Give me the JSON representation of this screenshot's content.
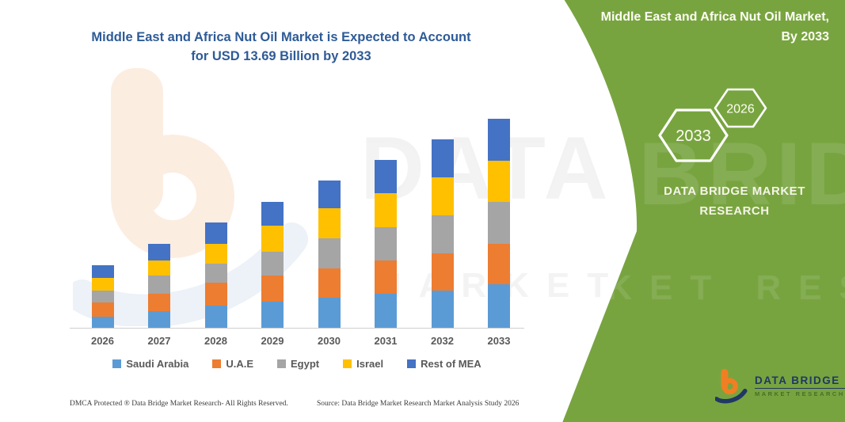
{
  "chart": {
    "title_line1": "Middle East and Africa Nut Oil Market is Expected to Account",
    "title_line2": "for USD 13.69 Billion by 2033",
    "title_color": "#2E5B97"
  },
  "chart_data": {
    "type": "bar",
    "stacked": true,
    "title": "Middle East and Africa Nut Oil Market is Expected to Account for USD 13.69 Billion by 2033",
    "value_unit": "USD Billion",
    "xlabel": "",
    "ylabel": "",
    "ylim": [
      0,
      14
    ],
    "grid": false,
    "legend_position": "bottom",
    "categories": [
      "2026",
      "2027",
      "2028",
      "2029",
      "2030",
      "2031",
      "2032",
      "2033"
    ],
    "series": [
      {
        "name": "Saudi Arabia",
        "color": "#5B9BD5",
        "values": [
          0.74,
          1.09,
          1.43,
          1.69,
          1.95,
          2.21,
          2.45,
          2.85
        ]
      },
      {
        "name": "U.A.E",
        "color": "#ED7D31",
        "values": [
          0.93,
          1.16,
          1.5,
          1.73,
          1.9,
          2.16,
          2.45,
          2.64
        ]
      },
      {
        "name": "Egypt",
        "color": "#A5A5A5",
        "values": [
          0.79,
          1.18,
          1.26,
          1.56,
          1.99,
          2.16,
          2.47,
          2.76
        ]
      },
      {
        "name": "Israel",
        "color": "#FFC000",
        "values": [
          0.81,
          1.0,
          1.3,
          1.73,
          1.99,
          2.25,
          2.5,
          2.71
        ]
      },
      {
        "name": "Rest of MEA",
        "color": "#4472C4",
        "values": [
          0.81,
          1.07,
          1.38,
          1.56,
          1.81,
          2.19,
          2.5,
          2.73
        ]
      }
    ],
    "totals_by_year": [
      4.08,
      5.5,
      6.87,
      8.27,
      9.64,
      10.97,
      12.37,
      13.69
    ],
    "final_year_total_label": "USD 13.69 Billion"
  },
  "side_panel": {
    "bg_color": "#78A440",
    "title_line1": "Middle East and Africa Nut Oil Market,",
    "title_line2": "By 2033",
    "badge_large": "2033",
    "badge_small": "2026",
    "brand_line1": "DATA BRIDGE MARKET",
    "brand_line2": "RESEARCH"
  },
  "logo": {
    "brand": "DATA BRIDGE",
    "sub": "MARKET RESEARCH",
    "orange": "#F07F23",
    "navy": "#1F3864"
  },
  "watermark": {
    "line1": "DATA BRIDGE",
    "line2": "MARKET RESEARCH"
  },
  "footer": {
    "dmca": "DMCA Protected ® Data Bridge Market Research-  All Rights Reserved.",
    "source": "Source: Data Bridge Market Research  Market Analysis Study 2026"
  },
  "colors": {
    "panel_green": "#78A440",
    "title_blue": "#2E5B97",
    "axis_gray": "#CFCFCF",
    "label_gray": "#595959"
  }
}
